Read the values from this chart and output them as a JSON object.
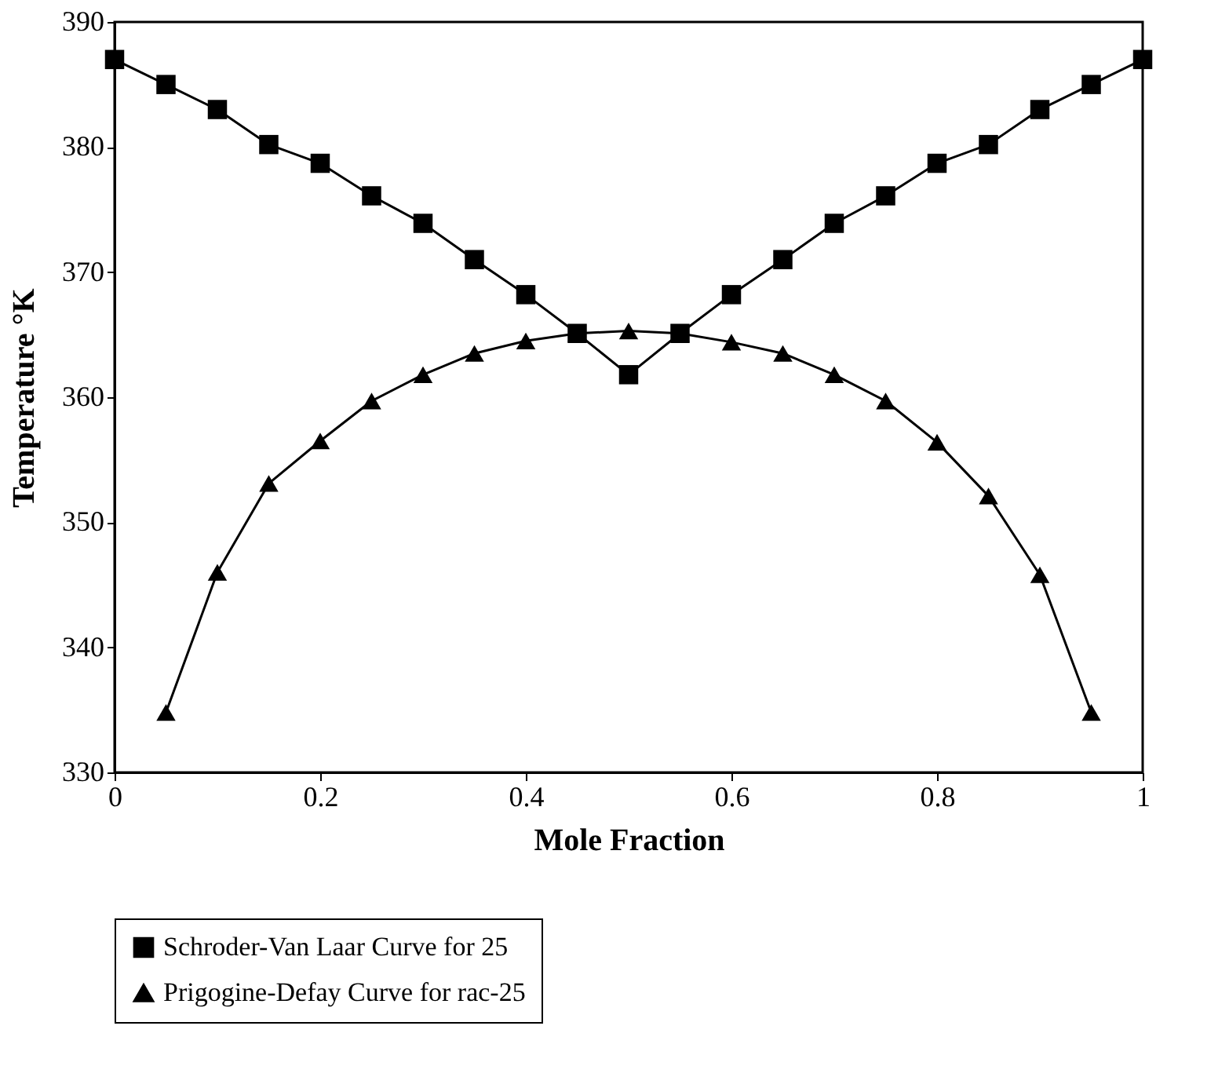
{
  "chart_data": {
    "type": "line",
    "xlabel": "Mole Fraction",
    "ylabel": "Temperature °K",
    "xlim": [
      0,
      1
    ],
    "xticks": [
      0,
      0.2,
      0.4,
      0.6,
      0.8,
      1
    ],
    "ylim": [
      330,
      390
    ],
    "yticks": [
      330,
      340,
      350,
      360,
      370,
      380,
      390
    ],
    "grid": false,
    "legend": "bottom",
    "line_style": "solid",
    "series": [
      {
        "name": "Schroder-Van Laar Curve for 25",
        "color": "#000000",
        "marker": "square",
        "x": [
          0,
          0.05,
          0.1,
          0.15,
          0.2,
          0.25,
          0.3,
          0.35,
          0.4,
          0.45,
          0.5,
          0.55,
          0.6,
          0.65,
          0.7,
          0.75,
          0.8,
          0.85,
          0.9,
          0.95,
          1
        ],
        "values": [
          387,
          385,
          383,
          380.2,
          378.7,
          376.1,
          373.9,
          371,
          368.2,
          365.1,
          361.8,
          365.1,
          368.2,
          371,
          373.9,
          376.1,
          378.7,
          380.2,
          383,
          385,
          387
        ]
      },
      {
        "name": "Prigogine-Defay Curve for rac-25",
        "color": "#000000",
        "marker": "triangle",
        "x": [
          0.05,
          0.1,
          0.15,
          0.2,
          0.25,
          0.3,
          0.35,
          0.4,
          0.45,
          0.5,
          0.55,
          0.6,
          0.65,
          0.7,
          0.75,
          0.8,
          0.85,
          0.9,
          0.95
        ],
        "values": [
          334.8,
          346,
          353.1,
          356.5,
          359.7,
          361.8,
          363.5,
          364.5,
          365.1,
          365.3,
          365.1,
          364.4,
          363.5,
          361.8,
          359.7,
          356.4,
          352.1,
          345.8,
          334.8
        ]
      }
    ]
  }
}
